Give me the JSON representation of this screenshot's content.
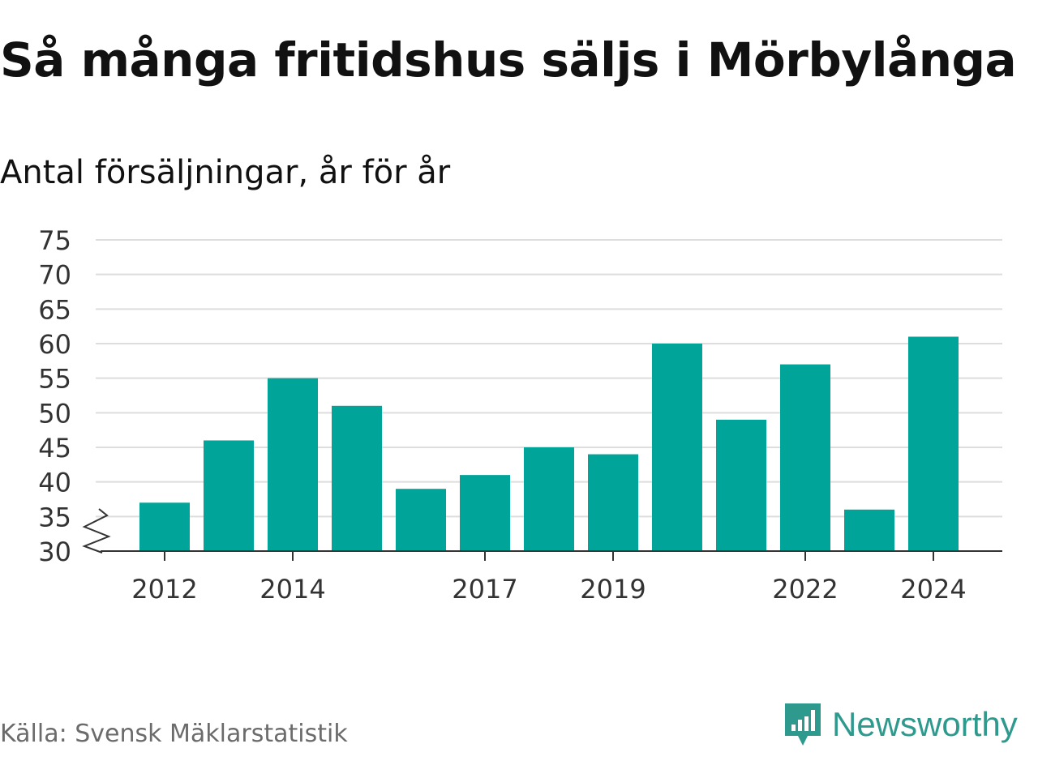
{
  "title": "Så många fritidshus säljs i Mörbylånga",
  "subtitle": "Antal försäljningar, år för år",
  "source": "Källa: Svensk Mäklarstatistik",
  "brand": {
    "name": "Newsworthy",
    "color": "#2e9a8e",
    "icon": "newsworthy-logo-icon"
  },
  "colors": {
    "bar": "#00a499",
    "grid": "#dddddd",
    "axis": "#333333"
  },
  "chart_data": {
    "type": "bar",
    "categories": [
      "2012",
      "2013",
      "2014",
      "2015",
      "2016",
      "2017",
      "2018",
      "2019",
      "2020",
      "2021",
      "2022",
      "2023",
      "2024"
    ],
    "values": [
      37,
      46,
      55,
      51,
      39,
      41,
      45,
      44,
      60,
      49,
      57,
      36,
      61
    ],
    "x_tick_labels": [
      "2012",
      "2014",
      "2017",
      "2019",
      "2022",
      "2024"
    ],
    "y_ticks": [
      30,
      35,
      40,
      45,
      50,
      55,
      60,
      65,
      70,
      75
    ],
    "ylim": [
      30,
      75
    ],
    "y_axis_break": true,
    "grid": true,
    "legend": "none",
    "xlabel": "",
    "ylabel": ""
  }
}
